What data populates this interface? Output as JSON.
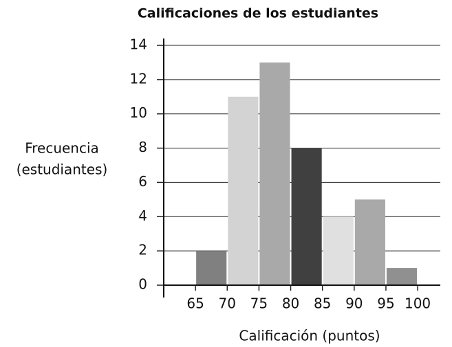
{
  "chart_data": {
    "type": "histogram",
    "title": "Calificaciones de los estudiantes",
    "xlabel": "Calificación (puntos)",
    "ylabel": [
      "Frecuencia",
      "(estudiantes)"
    ],
    "bins": [
      65,
      70,
      75,
      80,
      85,
      90,
      95,
      100
    ],
    "values": [
      2,
      11,
      13,
      8,
      4,
      5,
      1
    ],
    "colors": [
      "#808080",
      "#d3d3d3",
      "#a9a9a9",
      "#404040",
      "#e0e0e0",
      "#a9a9a9",
      "#909090"
    ],
    "xlim": [
      60,
      104
    ],
    "xticks": [
      65,
      70,
      75,
      80,
      85,
      90,
      95,
      100
    ],
    "ylim": [
      0,
      14
    ],
    "yticks": [
      0,
      2,
      4,
      6,
      8,
      10,
      12,
      14
    ],
    "grid": true
  }
}
